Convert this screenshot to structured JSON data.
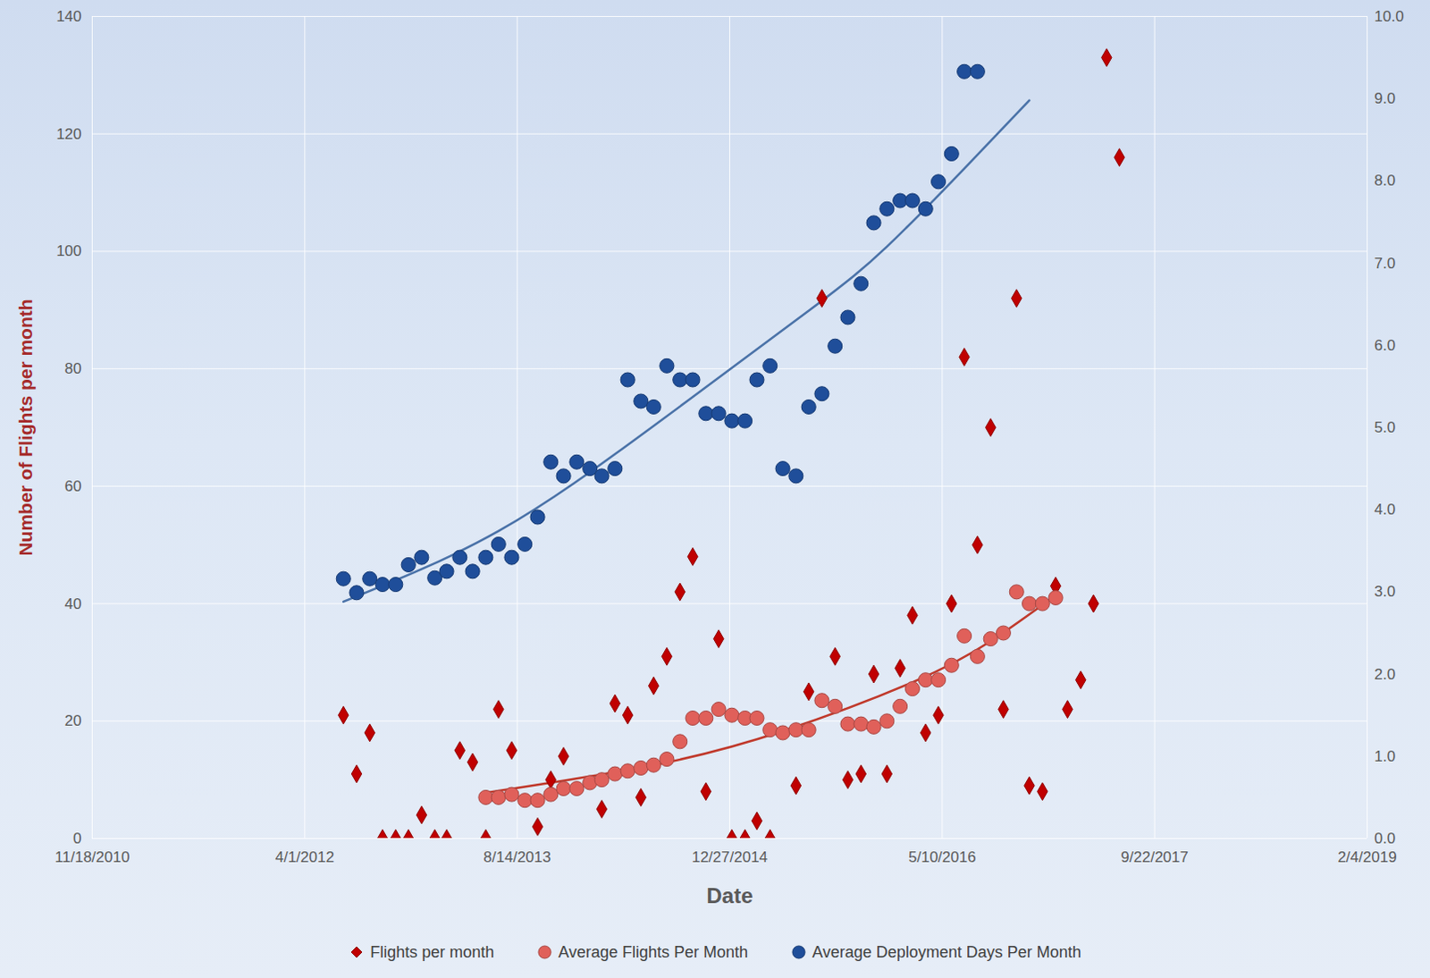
{
  "chart_data": {
    "type": "scatter",
    "x_label": "Date",
    "y_label": "Number of Flights per month",
    "xlim": [
      "2010-11-18",
      "2019-02-04"
    ],
    "xticks": [
      {
        "value": "2010-11-18",
        "label": "11/18/2010"
      },
      {
        "value": "2012-04-01",
        "label": "4/1/2012"
      },
      {
        "value": "2013-08-14",
        "label": "8/14/2013"
      },
      {
        "value": "2014-12-27",
        "label": "12/27/2014"
      },
      {
        "value": "2016-05-10",
        "label": "5/10/2016"
      },
      {
        "value": "2017-09-22",
        "label": "9/22/2017"
      },
      {
        "value": "2019-02-04",
        "label": "2/4/2019"
      }
    ],
    "ylim": [
      0,
      140
    ],
    "yticks": [
      0,
      20,
      40,
      60,
      80,
      100,
      120,
      140
    ],
    "y2lim": [
      0,
      10
    ],
    "y2ticks": [
      {
        "value": 0,
        "label": "0.0"
      },
      {
        "value": 1,
        "label": "1.0"
      },
      {
        "value": 2,
        "label": "2.0"
      },
      {
        "value": 3,
        "label": "3.0"
      },
      {
        "value": 4,
        "label": "4.0"
      },
      {
        "value": 5,
        "label": "5.0"
      },
      {
        "value": 6,
        "label": "6.0"
      },
      {
        "value": 7,
        "label": "7.0"
      },
      {
        "value": 8,
        "label": "8.0"
      },
      {
        "value": 9,
        "label": "9.0"
      },
      {
        "value": 10,
        "label": "10.0"
      }
    ],
    "grid": true,
    "legend": "bottom",
    "series": [
      {
        "name": "Flights per month",
        "color": "#c00000",
        "marker": "diamond",
        "axis": "y",
        "x": [
          "2012-07-01",
          "2012-08-01",
          "2012-09-01",
          "2012-10-01",
          "2012-11-01",
          "2012-12-01",
          "2013-01-01",
          "2013-02-01",
          "2013-03-01",
          "2013-04-01",
          "2013-05-01",
          "2013-06-01",
          "2013-07-01",
          "2013-08-01",
          "2013-10-01",
          "2013-11-01",
          "2013-12-01",
          "2014-03-01",
          "2014-04-01",
          "2014-05-01",
          "2014-06-01",
          "2014-07-01",
          "2014-08-01",
          "2014-09-01",
          "2014-10-01",
          "2014-11-01",
          "2014-12-01",
          "2015-01-01",
          "2015-02-01",
          "2015-03-01",
          "2015-04-01",
          "2015-06-01",
          "2015-07-01",
          "2015-08-01",
          "2015-09-01",
          "2015-10-01",
          "2015-11-01",
          "2015-12-01",
          "2016-01-01",
          "2016-02-01",
          "2016-03-01",
          "2016-04-01",
          "2016-05-01",
          "2016-06-01",
          "2016-07-01",
          "2016-08-01",
          "2016-09-01",
          "2016-10-01",
          "2016-11-01",
          "2016-12-01",
          "2017-01-01",
          "2017-02-01",
          "2017-03-01",
          "2017-04-01",
          "2017-05-01",
          "2017-06-01",
          "2017-07-01"
        ],
        "values": [
          21,
          11,
          18,
          0,
          0,
          0,
          4,
          0,
          0,
          15,
          13,
          0,
          22,
          15,
          2,
          10,
          14,
          5,
          23,
          21,
          7,
          26,
          31,
          42,
          48,
          8,
          34,
          0,
          0,
          3,
          0,
          9,
          25,
          92,
          31,
          10,
          11,
          28,
          11,
          29,
          38,
          18,
          21,
          40,
          82,
          50,
          70,
          22,
          92,
          9,
          8,
          43,
          22,
          27,
          40,
          133,
          116
        ]
      },
      {
        "name": "Average Flights Per Month",
        "color": "#e0605a",
        "marker": "circle",
        "axis": "y",
        "x": [
          "2013-06-01",
          "2013-07-01",
          "2013-08-01",
          "2013-09-01",
          "2013-10-01",
          "2013-11-01",
          "2013-12-01",
          "2014-01-01",
          "2014-02-01",
          "2014-03-01",
          "2014-04-01",
          "2014-05-01",
          "2014-06-01",
          "2014-07-01",
          "2014-08-01",
          "2014-09-01",
          "2014-10-01",
          "2014-11-01",
          "2014-12-01",
          "2015-01-01",
          "2015-02-01",
          "2015-03-01",
          "2015-04-01",
          "2015-05-01",
          "2015-06-01",
          "2015-07-01",
          "2015-08-01",
          "2015-09-01",
          "2015-10-01",
          "2015-11-01",
          "2015-12-01",
          "2016-01-01",
          "2016-02-01",
          "2016-03-01",
          "2016-04-01",
          "2016-05-01",
          "2016-06-01",
          "2016-07-01",
          "2016-08-01",
          "2016-09-01",
          "2016-10-01",
          "2016-11-01",
          "2016-12-01",
          "2017-01-01",
          "2017-02-01"
        ],
        "values": [
          7,
          7,
          7.5,
          6.5,
          6.5,
          7.5,
          8.5,
          8.5,
          9.5,
          10,
          11,
          11.5,
          12,
          12.5,
          13.5,
          16.5,
          20.5,
          20.5,
          22,
          21,
          20.5,
          20.5,
          18.5,
          18,
          18.5,
          18.5,
          23.5,
          22.5,
          19.5,
          19.5,
          19,
          20,
          22.5,
          25.5,
          27,
          27,
          29.5,
          34.5,
          31,
          34,
          35,
          42,
          40,
          40,
          41
        ],
        "trendline": {
          "color": "#c0392b",
          "x": [
            "2013-06-01",
            "2014-07-01",
            "2015-05-01",
            "2016-03-01",
            "2016-09-01",
            "2017-02-01"
          ],
          "values": [
            7.8,
            12.5,
            18.3,
            26.6,
            33.6,
            41.4
          ]
        }
      },
      {
        "name": "Average Deployment Days Per Month",
        "color": "#1f4e9a",
        "marker": "circle",
        "axis": "y2",
        "x": [
          "2012-07-01",
          "2012-08-01",
          "2012-09-01",
          "2012-10-01",
          "2012-11-01",
          "2012-12-01",
          "2013-01-01",
          "2013-02-01",
          "2013-03-01",
          "2013-04-01",
          "2013-05-01",
          "2013-06-01",
          "2013-07-01",
          "2013-08-01",
          "2013-09-01",
          "2013-10-01",
          "2013-11-01",
          "2013-12-01",
          "2014-01-01",
          "2014-02-01",
          "2014-03-01",
          "2014-04-01",
          "2014-05-01",
          "2014-06-01",
          "2014-07-01",
          "2014-08-01",
          "2014-09-01",
          "2014-10-01",
          "2014-11-01",
          "2014-12-01",
          "2015-01-01",
          "2015-02-01",
          "2015-03-01",
          "2015-04-01",
          "2015-05-01",
          "2015-06-01",
          "2015-07-01",
          "2015-08-01",
          "2015-09-01",
          "2015-10-01",
          "2015-11-01",
          "2015-12-01",
          "2016-01-01",
          "2016-02-01",
          "2016-03-01",
          "2016-04-01",
          "2016-05-01",
          "2016-06-01",
          "2016-07-01",
          "2016-08-01"
        ],
        "values": [
          3.16,
          2.99,
          3.16,
          3.09,
          3.09,
          3.33,
          3.42,
          3.17,
          3.25,
          3.42,
          3.25,
          3.42,
          3.58,
          3.42,
          3.58,
          3.91,
          4.58,
          4.41,
          4.58,
          4.5,
          4.41,
          4.5,
          5.58,
          5.32,
          5.25,
          5.75,
          5.58,
          5.58,
          5.17,
          5.17,
          5.08,
          5.08,
          5.58,
          5.75,
          4.5,
          4.41,
          5.25,
          5.41,
          5.99,
          6.34,
          6.75,
          7.49,
          7.66,
          7.76,
          7.76,
          7.66,
          7.99,
          8.33,
          9.33,
          9.33
        ],
        "trendline": {
          "color": "#4a72a8",
          "x": [
            "2012-07-01",
            "2013-07-01",
            "2014-07-01",
            "2015-07-01",
            "2016-01-01",
            "2016-07-01",
            "2016-12-01"
          ],
          "values": [
            2.88,
            3.74,
            5.02,
            6.42,
            7.2,
            8.15,
            8.98
          ]
        }
      }
    ]
  }
}
